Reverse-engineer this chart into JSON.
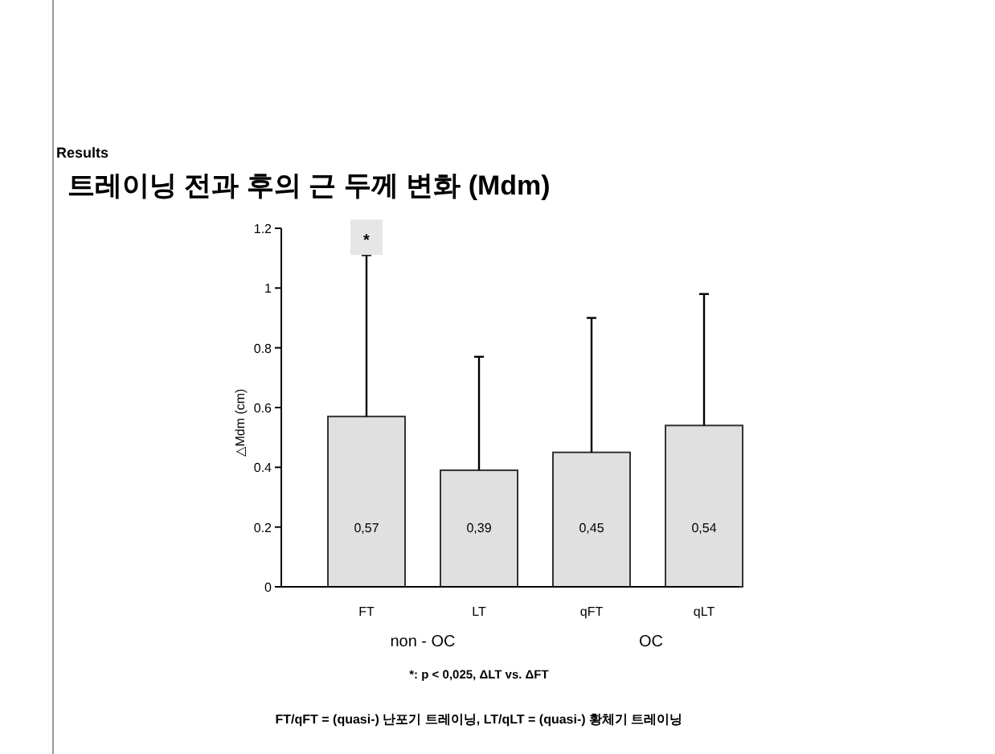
{
  "chart_data": {
    "type": "bar",
    "title": "트레이닝 전과 후의 근 두께 변화 (Mdm)",
    "subtitle": "Results",
    "ylabel": "△Mdm (cm)",
    "categories": [
      "FT",
      "LT",
      "qFT",
      "qLT"
    ],
    "values": [
      0.57,
      0.39,
      0.45,
      0.54
    ],
    "errors": [
      [
        0.57,
        1.11
      ],
      [
        0.39,
        0.77
      ],
      [
        0.45,
        0.9
      ],
      [
        0.54,
        0.98
      ]
    ],
    "value_labels": [
      "0,57",
      "0,39",
      "0,45",
      "0,54"
    ],
    "color": "#e0e0e0",
    "ylim": [
      0,
      1.2
    ],
    "yticks": [
      0,
      0.2,
      0.4,
      0.6,
      0.8,
      1,
      1.2
    ],
    "annotations": [
      {
        "text": "*",
        "x": "FT",
        "y": 1.17
      },
      "non - OC",
      "OC",
      "*: p < 0,025, ΔLT vs. ΔFT",
      "FT/qFT = (quasi-) 난포기 트레이닝, LT/qLT = (quasi-) 황체기 트레이닝"
    ]
  }
}
